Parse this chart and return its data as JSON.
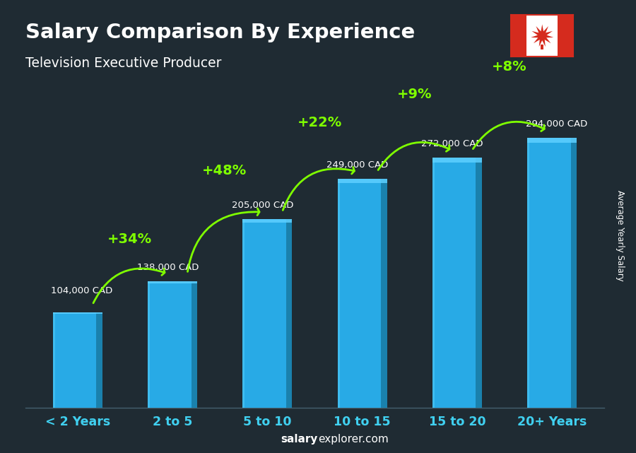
{
  "title": "Salary Comparison By Experience",
  "subtitle": "Television Executive Producer",
  "categories": [
    "< 2 Years",
    "2 to 5",
    "5 to 10",
    "10 to 15",
    "15 to 20",
    "20+ Years"
  ],
  "values": [
    104000,
    138000,
    205000,
    249000,
    272000,
    294000
  ],
  "value_labels": [
    "104,000 CAD",
    "138,000 CAD",
    "205,000 CAD",
    "249,000 CAD",
    "272,000 CAD",
    "294,000 CAD"
  ],
  "arcs": [
    {
      "from": 0,
      "to": 1,
      "pct": "+34%"
    },
    {
      "from": 1,
      "to": 2,
      "pct": "+48%"
    },
    {
      "from": 2,
      "to": 3,
      "pct": "+22%"
    },
    {
      "from": 3,
      "to": 4,
      "pct": "+9%"
    },
    {
      "from": 4,
      "to": 5,
      "pct": "+8%"
    }
  ],
  "bar_color_main": "#29b6f6",
  "bar_color_right": "#1a7faa",
  "bar_color_top": "#5ecfff",
  "bar_color_edge": "#1a9ad4",
  "pct_color": "#7fff00",
  "value_label_color": "#ffffff",
  "xlabel_color": "#40d0f0",
  "title_color": "#ffffff",
  "subtitle_color": "#ffffff",
  "ylabel_text": "Average Yearly Salary",
  "watermark_bold": "salary",
  "watermark_normal": "explorer.com",
  "bg_color": "#2a3540",
  "ylim": [
    0,
    360000
  ],
  "bar_width": 0.52
}
